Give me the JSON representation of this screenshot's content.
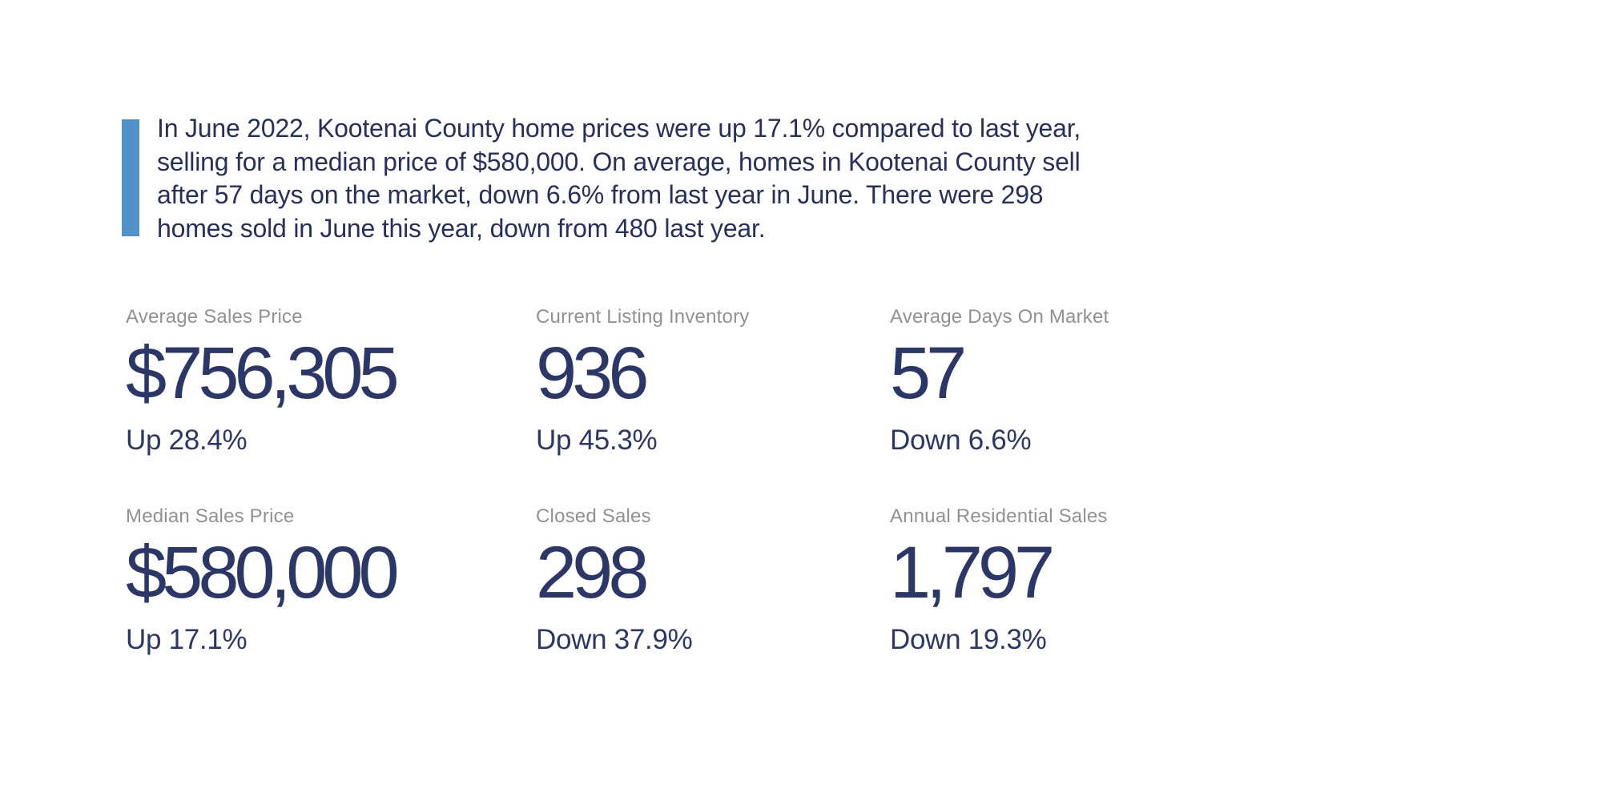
{
  "colors": {
    "accent_bar": "#5191C8",
    "quote_text": "#272F5D",
    "stat_value": "#2B3767",
    "stat_label": "#8F9194",
    "background": "#FFFFFF"
  },
  "quote": {
    "lines": [
      "In June 2022, Kootenai County home prices were up 17.1% compared to last year,",
      "selling for a median price of $580,000. On average, homes in Kootenai County sell",
      "after 57 days on the market, down 6.6% from last year in June. There were 298",
      "homes sold in June this year, down from 480 last year."
    ]
  },
  "stats": [
    {
      "label": "Average Sales Price",
      "value": "$756,305",
      "delta": "Up 28.4%"
    },
    {
      "label": "Current Listing Inventory",
      "value": "936",
      "delta": "Up 45.3%"
    },
    {
      "label": "Average Days On Market",
      "value": "57",
      "delta": "Down 6.6%"
    },
    {
      "label": "Median Sales Price",
      "value": "$580,000",
      "delta": "Up 17.1%"
    },
    {
      "label": "Closed Sales",
      "value": "298",
      "delta": "Down 37.9%"
    },
    {
      "label": "Annual Residential Sales",
      "value": "1,797",
      "delta": "Down 19.3%"
    }
  ]
}
